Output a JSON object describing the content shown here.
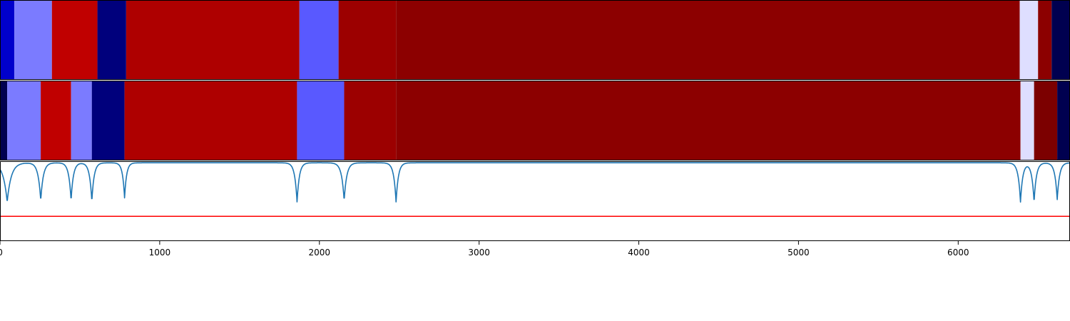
{
  "chart_data": [
    {
      "type": "heatmap",
      "name": "segmentation-track-1",
      "xlim": [
        0,
        6700
      ],
      "segments": [
        {
          "start": 0,
          "end": 90,
          "color": "#0000cc"
        },
        {
          "start": 90,
          "end": 325,
          "color": "#7b7bff"
        },
        {
          "start": 325,
          "end": 610,
          "color": "#c00000"
        },
        {
          "start": 610,
          "end": 790,
          "color": "#00007c"
        },
        {
          "start": 790,
          "end": 1875,
          "color": "#ae0000"
        },
        {
          "start": 1875,
          "end": 2120,
          "color": "#5959ff"
        },
        {
          "start": 2120,
          "end": 2480,
          "color": "#9c0000"
        },
        {
          "start": 2480,
          "end": 6385,
          "color": "#8c0000"
        },
        {
          "start": 6385,
          "end": 6500,
          "color": "#dedeff"
        },
        {
          "start": 6500,
          "end": 6585,
          "color": "#8c0000"
        },
        {
          "start": 6585,
          "end": 6700,
          "color": "#000050"
        }
      ]
    },
    {
      "type": "heatmap",
      "name": "segmentation-track-2",
      "xlim": [
        0,
        6700
      ],
      "segments": [
        {
          "start": 0,
          "end": 45,
          "color": "#000050"
        },
        {
          "start": 45,
          "end": 255,
          "color": "#7b7bff"
        },
        {
          "start": 255,
          "end": 445,
          "color": "#c00000"
        },
        {
          "start": 445,
          "end": 575,
          "color": "#7b7bff"
        },
        {
          "start": 575,
          "end": 780,
          "color": "#00007c"
        },
        {
          "start": 780,
          "end": 1860,
          "color": "#ae0000"
        },
        {
          "start": 1860,
          "end": 2155,
          "color": "#5959ff"
        },
        {
          "start": 2155,
          "end": 2480,
          "color": "#9c0000"
        },
        {
          "start": 2480,
          "end": 6390,
          "color": "#8c0000"
        },
        {
          "start": 6390,
          "end": 6475,
          "color": "#dedeff"
        },
        {
          "start": 6475,
          "end": 6620,
          "color": "#7c0000"
        },
        {
          "start": 6620,
          "end": 6700,
          "color": "#000050"
        }
      ]
    },
    {
      "type": "line",
      "name": "boundary-score",
      "xlim": [
        0,
        6700
      ],
      "ylim": [
        0,
        1
      ],
      "grid": false,
      "line_color": "#1f77b4",
      "baseline_y": 0.98,
      "threshold": {
        "y": 0.31,
        "color": "#ff0000"
      },
      "dips": [
        {
          "x": 45,
          "depth": 0.49,
          "width": 70
        },
        {
          "x": 255,
          "depth": 0.47,
          "width": 45
        },
        {
          "x": 445,
          "depth": 0.47,
          "width": 40
        },
        {
          "x": 575,
          "depth": 0.48,
          "width": 40
        },
        {
          "x": 780,
          "depth": 0.44,
          "width": 35
        },
        {
          "x": 1860,
          "depth": 0.49,
          "width": 40
        },
        {
          "x": 2155,
          "depth": 0.47,
          "width": 45
        },
        {
          "x": 2480,
          "depth": 0.49,
          "width": 40
        },
        {
          "x": 6390,
          "depth": 0.49,
          "width": 40
        },
        {
          "x": 6475,
          "depth": 0.49,
          "width": 40
        },
        {
          "x": 6620,
          "depth": 0.46,
          "width": 40
        }
      ],
      "xticks": [
        0,
        1000,
        2000,
        3000,
        4000,
        5000,
        6000
      ],
      "xtick_labels": [
        "0",
        "1000",
        "2000",
        "3000",
        "4000",
        "5000",
        "6000"
      ],
      "xlabel": "",
      "ylabel": ""
    }
  ]
}
